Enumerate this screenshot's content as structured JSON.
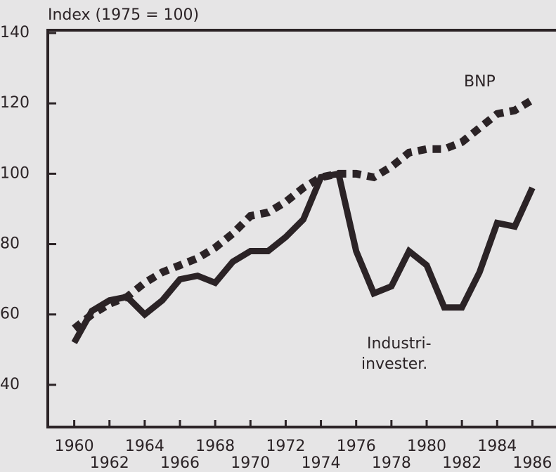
{
  "chart_data": {
    "type": "line",
    "title": "Index (1975 = 100)",
    "x": [
      1960,
      1961,
      1962,
      1963,
      1964,
      1965,
      1966,
      1967,
      1968,
      1969,
      1970,
      1971,
      1972,
      1973,
      1974,
      1975,
      1976,
      1977,
      1978,
      1979,
      1980,
      1981,
      1982,
      1983,
      1984,
      1985,
      1986
    ],
    "series": [
      {
        "name": "BNP",
        "color": "#2b2326",
        "dashed": true,
        "values": [
          56,
          60,
          63,
          65,
          69,
          72,
          74,
          76,
          79,
          83,
          88,
          89,
          92,
          96,
          99,
          100,
          100,
          99,
          102,
          106,
          107,
          107,
          109,
          113,
          117,
          118,
          121
        ]
      },
      {
        "name": "Industri- invester.",
        "color": "#2b2326",
        "dashed": false,
        "values": [
          52,
          61,
          64,
          65,
          60,
          64,
          70,
          71,
          69,
          75,
          78,
          78,
          82,
          87,
          99,
          100,
          78,
          66,
          68,
          78,
          74,
          62,
          62,
          72,
          86,
          85,
          96
        ]
      }
    ],
    "annotations": [
      "BNP",
      "Industri-",
      "invester."
    ],
    "xlim": [
      1958.5,
      1987.3
    ],
    "ylim": [
      28,
      140
    ],
    "xticks": [
      1960,
      1962,
      1964,
      1966,
      1968,
      1970,
      1972,
      1974,
      1976,
      1978,
      1980,
      1982,
      1984,
      1986
    ],
    "yticks": [
      40,
      60,
      80,
      100,
      120,
      140
    ],
    "grid": false
  }
}
